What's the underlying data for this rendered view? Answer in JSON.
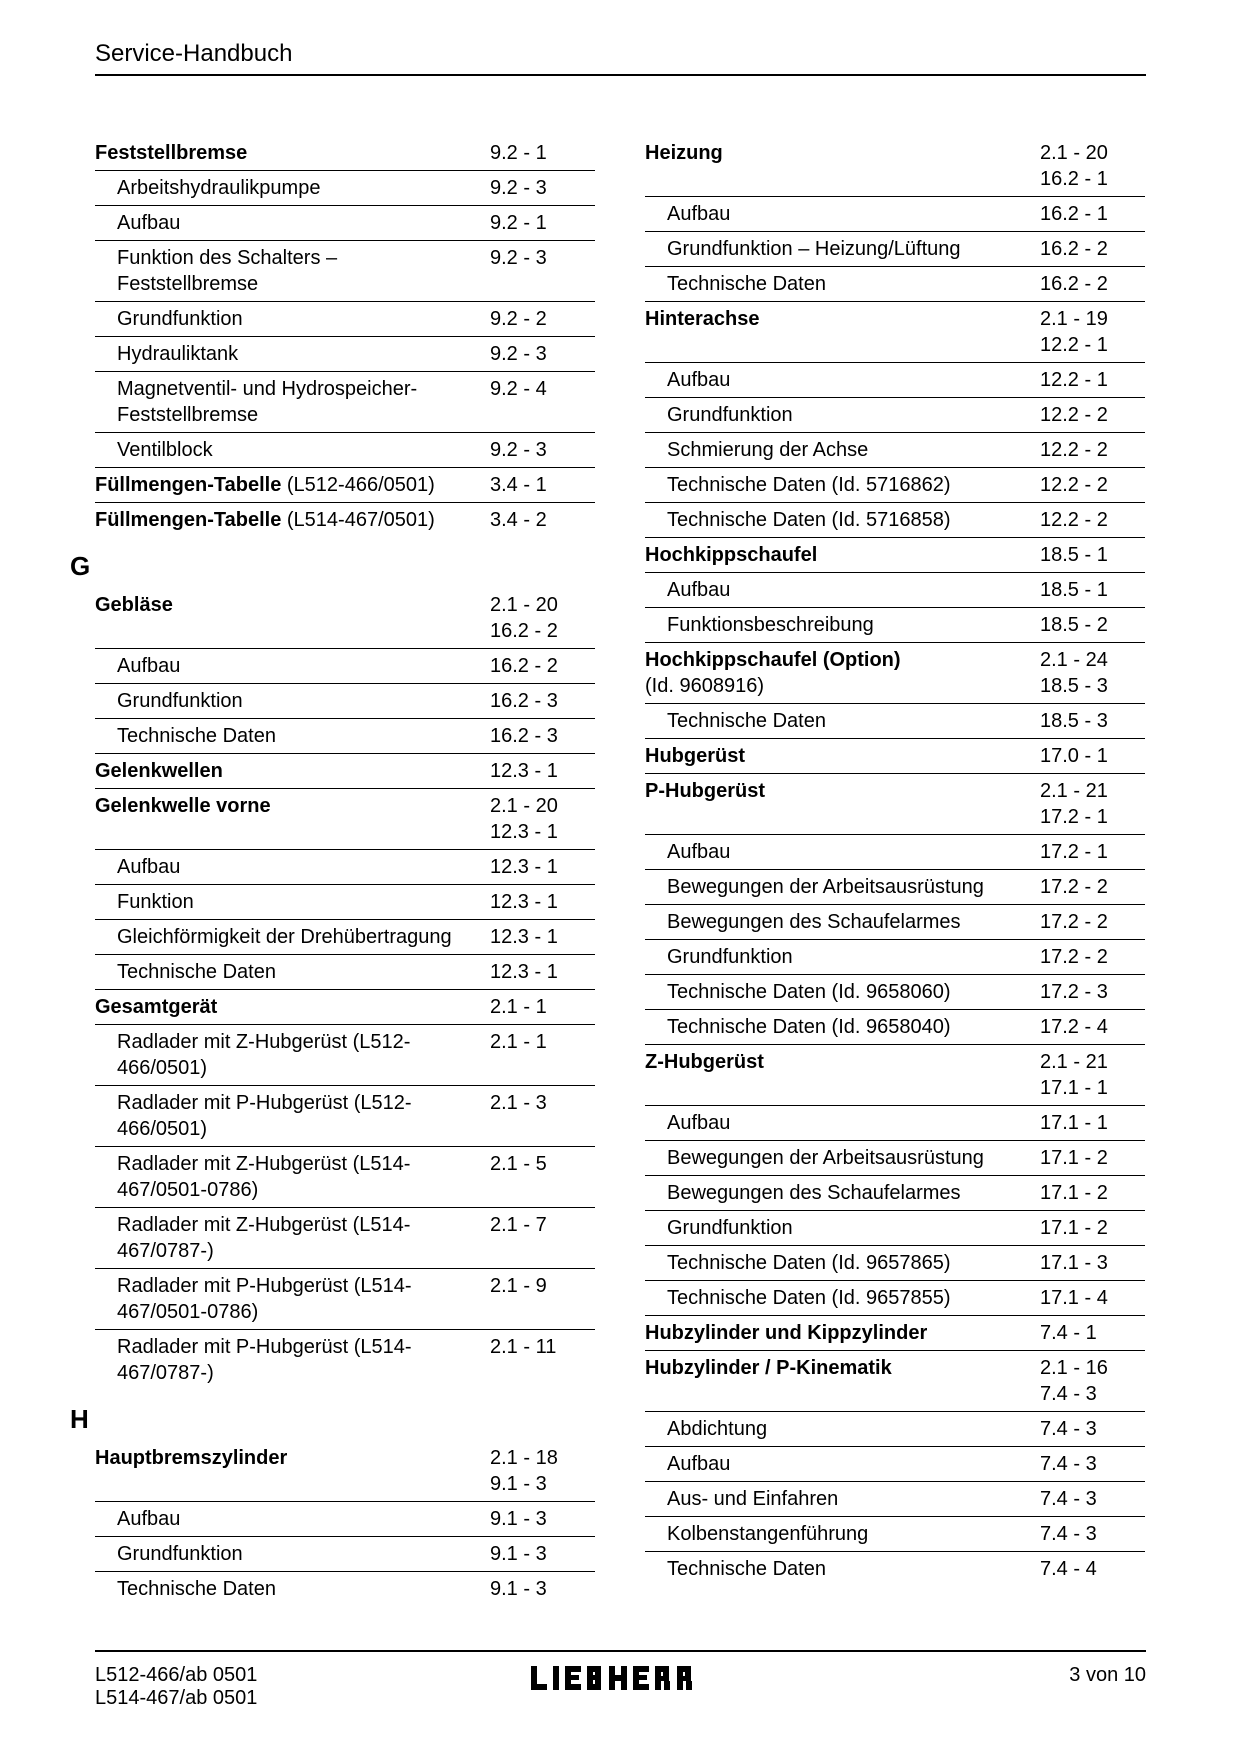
{
  "header": {
    "title": "Service-Handbuch"
  },
  "footer": {
    "left": "L512-466/ab 0501\nL514-467/ab 0501",
    "center": "LIEBHERR",
    "right": "3 von 10"
  },
  "left_column": [
    {
      "type": "entry",
      "bold": true,
      "sub": false,
      "noborder": true,
      "label": "Feststellbremse",
      "pages": "9.2 - 1"
    },
    {
      "type": "entry",
      "bold": false,
      "sub": true,
      "noborder": false,
      "label": "Arbeitshydraulikpumpe",
      "pages": "9.2 - 3"
    },
    {
      "type": "entry",
      "bold": false,
      "sub": true,
      "noborder": false,
      "label": "Aufbau",
      "pages": "9.2 - 1"
    },
    {
      "type": "entry",
      "bold": false,
      "sub": true,
      "noborder": false,
      "label": "Funktion des Schalters – Feststellbremse",
      "pages": "9.2 - 3"
    },
    {
      "type": "entry",
      "bold": false,
      "sub": true,
      "noborder": false,
      "label": "Grundfunktion",
      "pages": "9.2 - 2"
    },
    {
      "type": "entry",
      "bold": false,
      "sub": true,
      "noborder": false,
      "label": "Hydrauliktank",
      "pages": "9.2 - 3"
    },
    {
      "type": "entry",
      "bold": false,
      "sub": true,
      "noborder": false,
      "label": "Magnetventil- und Hydrospeicher-Feststellbremse",
      "pages": "9.2 - 4"
    },
    {
      "type": "entry",
      "bold": false,
      "sub": true,
      "noborder": false,
      "label": "Ventilblock",
      "pages": "9.2 - 3"
    },
    {
      "type": "entry-mixed",
      "sub": false,
      "noborder": false,
      "boldpart": "Füllmengen-Tabelle",
      "normalpart": " (L512-466/0501)",
      "pages": "3.4 - 1"
    },
    {
      "type": "entry-mixed",
      "sub": false,
      "noborder": false,
      "boldpart": "Füllmengen-Tabelle",
      "normalpart": " (L514-467/0501)",
      "pages": "3.4 - 2"
    },
    {
      "type": "letter",
      "text": "G"
    },
    {
      "type": "entry",
      "bold": true,
      "sub": false,
      "noborder": true,
      "label": "Gebläse",
      "pages": "2.1 - 20\n16.2 - 2"
    },
    {
      "type": "entry",
      "bold": false,
      "sub": true,
      "noborder": false,
      "label": "Aufbau",
      "pages": "16.2 - 2"
    },
    {
      "type": "entry",
      "bold": false,
      "sub": true,
      "noborder": false,
      "label": "Grundfunktion",
      "pages": "16.2 - 3"
    },
    {
      "type": "entry",
      "bold": false,
      "sub": true,
      "noborder": false,
      "label": "Technische Daten",
      "pages": "16.2 - 3"
    },
    {
      "type": "entry",
      "bold": true,
      "sub": false,
      "noborder": false,
      "label": "Gelenkwellen",
      "pages": "12.3 - 1"
    },
    {
      "type": "entry",
      "bold": true,
      "sub": false,
      "noborder": false,
      "label": "Gelenkwelle vorne",
      "pages": "2.1 - 20\n12.3 - 1"
    },
    {
      "type": "entry",
      "bold": false,
      "sub": true,
      "noborder": false,
      "label": "Aufbau",
      "pages": "12.3 - 1"
    },
    {
      "type": "entry",
      "bold": false,
      "sub": true,
      "noborder": false,
      "label": "Funktion",
      "pages": "12.3 - 1"
    },
    {
      "type": "entry",
      "bold": false,
      "sub": true,
      "noborder": false,
      "label": "Gleichförmigkeit der Drehübertragung",
      "pages": "12.3 - 1"
    },
    {
      "type": "entry",
      "bold": false,
      "sub": true,
      "noborder": false,
      "label": "Technische Daten",
      "pages": "12.3 - 1"
    },
    {
      "type": "entry",
      "bold": true,
      "sub": false,
      "noborder": false,
      "label": "Gesamtgerät",
      "pages": "2.1 - 1"
    },
    {
      "type": "entry",
      "bold": false,
      "sub": true,
      "noborder": false,
      "label": "Radlader mit Z-Hubgerüst (L512-466/0501)",
      "pages": "2.1 - 1"
    },
    {
      "type": "entry",
      "bold": false,
      "sub": true,
      "noborder": false,
      "label": "Radlader mit P-Hubgerüst (L512-466/0501)",
      "pages": "2.1 - 3"
    },
    {
      "type": "entry",
      "bold": false,
      "sub": true,
      "noborder": false,
      "label": "Radlader mit Z-Hubgerüst (L514-467/0501-0786)",
      "pages": "2.1 - 5"
    },
    {
      "type": "entry",
      "bold": false,
      "sub": true,
      "noborder": false,
      "label": "Radlader mit Z-Hubgerüst (L514-467/0787-)",
      "pages": "2.1 - 7"
    },
    {
      "type": "entry",
      "bold": false,
      "sub": true,
      "noborder": false,
      "label": "Radlader mit P-Hubgerüst (L514-467/0501-0786)",
      "pages": "2.1 - 9"
    },
    {
      "type": "entry",
      "bold": false,
      "sub": true,
      "noborder": false,
      "label": "Radlader mit P-Hubgerüst (L514-467/0787-)",
      "pages": "2.1 - 11"
    },
    {
      "type": "letter",
      "text": "H"
    },
    {
      "type": "entry",
      "bold": true,
      "sub": false,
      "noborder": true,
      "label": "Hauptbremszylinder",
      "pages": "2.1 - 18\n9.1 - 3"
    },
    {
      "type": "entry",
      "bold": false,
      "sub": true,
      "noborder": false,
      "label": "Aufbau",
      "pages": "9.1 - 3"
    },
    {
      "type": "entry",
      "bold": false,
      "sub": true,
      "noborder": false,
      "label": "Grundfunktion",
      "pages": "9.1 - 3"
    },
    {
      "type": "entry",
      "bold": false,
      "sub": true,
      "noborder": false,
      "label": "Technische Daten",
      "pages": "9.1 - 3"
    }
  ],
  "right_column": [
    {
      "type": "entry",
      "bold": true,
      "sub": false,
      "noborder": true,
      "label": "Heizung",
      "pages": "2.1 - 20\n16.2 - 1"
    },
    {
      "type": "entry",
      "bold": false,
      "sub": true,
      "noborder": false,
      "label": "Aufbau",
      "pages": "16.2 - 1"
    },
    {
      "type": "entry",
      "bold": false,
      "sub": true,
      "noborder": false,
      "label": "Grundfunktion – Heizung/Lüftung",
      "pages": "16.2 - 2"
    },
    {
      "type": "entry",
      "bold": false,
      "sub": true,
      "noborder": false,
      "label": "Technische Daten",
      "pages": "16.2 - 2"
    },
    {
      "type": "entry",
      "bold": true,
      "sub": false,
      "noborder": false,
      "label": "Hinterachse",
      "pages": "2.1 - 19\n12.2 - 1"
    },
    {
      "type": "entry",
      "bold": false,
      "sub": true,
      "noborder": false,
      "label": "Aufbau",
      "pages": "12.2 - 1"
    },
    {
      "type": "entry",
      "bold": false,
      "sub": true,
      "noborder": false,
      "label": "Grundfunktion",
      "pages": "12.2 - 2"
    },
    {
      "type": "entry",
      "bold": false,
      "sub": true,
      "noborder": false,
      "label": "Schmierung der Achse",
      "pages": "12.2 - 2"
    },
    {
      "type": "entry",
      "bold": false,
      "sub": true,
      "noborder": false,
      "label": "Technische Daten (Id. 5716862)",
      "pages": "12.2 - 2"
    },
    {
      "type": "entry",
      "bold": false,
      "sub": true,
      "noborder": false,
      "label": "Technische Daten (Id. 5716858)",
      "pages": "12.2 - 2"
    },
    {
      "type": "entry",
      "bold": true,
      "sub": false,
      "noborder": false,
      "label": "Hochkippschaufel",
      "pages": "18.5 - 1"
    },
    {
      "type": "entry",
      "bold": false,
      "sub": true,
      "noborder": false,
      "label": "Aufbau",
      "pages": "18.5 - 1"
    },
    {
      "type": "entry",
      "bold": false,
      "sub": true,
      "noborder": false,
      "label": "Funktionsbeschreibung",
      "pages": "18.5 - 2"
    },
    {
      "type": "entry-mixed",
      "sub": false,
      "noborder": false,
      "boldpart": "Hochkippschaufel (Option)",
      "normalpart": "\n(Id. 9608916)",
      "pages": "2.1 - 24\n18.5 - 3"
    },
    {
      "type": "entry",
      "bold": false,
      "sub": true,
      "noborder": false,
      "label": "Technische Daten",
      "pages": "18.5 - 3"
    },
    {
      "type": "entry",
      "bold": true,
      "sub": false,
      "noborder": false,
      "label": "Hubgerüst",
      "pages": "17.0 - 1"
    },
    {
      "type": "entry",
      "bold": true,
      "sub": false,
      "noborder": false,
      "label": "P-Hubgerüst",
      "pages": "2.1 - 21\n17.2 - 1"
    },
    {
      "type": "entry",
      "bold": false,
      "sub": true,
      "noborder": false,
      "label": "Aufbau",
      "pages": "17.2 - 1"
    },
    {
      "type": "entry",
      "bold": false,
      "sub": true,
      "noborder": false,
      "label": "Bewegungen der Arbeitsausrüstung",
      "pages": "17.2 - 2"
    },
    {
      "type": "entry",
      "bold": false,
      "sub": true,
      "noborder": false,
      "label": "Bewegungen des Schaufelarmes",
      "pages": "17.2 - 2"
    },
    {
      "type": "entry",
      "bold": false,
      "sub": true,
      "noborder": false,
      "label": "Grundfunktion",
      "pages": "17.2 - 2"
    },
    {
      "type": "entry",
      "bold": false,
      "sub": true,
      "noborder": false,
      "label": "Technische Daten (Id. 9658060)",
      "pages": "17.2 - 3"
    },
    {
      "type": "entry",
      "bold": false,
      "sub": true,
      "noborder": false,
      "label": "Technische Daten (Id. 9658040)",
      "pages": "17.2 - 4"
    },
    {
      "type": "entry",
      "bold": true,
      "sub": false,
      "noborder": false,
      "label": "Z-Hubgerüst",
      "pages": "2.1 - 21\n17.1 - 1"
    },
    {
      "type": "entry",
      "bold": false,
      "sub": true,
      "noborder": false,
      "label": "Aufbau",
      "pages": "17.1 - 1"
    },
    {
      "type": "entry",
      "bold": false,
      "sub": true,
      "noborder": false,
      "label": "Bewegungen der Arbeitsausrüstung",
      "pages": "17.1 - 2"
    },
    {
      "type": "entry",
      "bold": false,
      "sub": true,
      "noborder": false,
      "label": "Bewegungen des Schaufelarmes",
      "pages": "17.1 - 2"
    },
    {
      "type": "entry",
      "bold": false,
      "sub": true,
      "noborder": false,
      "label": "Grundfunktion",
      "pages": "17.1 - 2"
    },
    {
      "type": "entry",
      "bold": false,
      "sub": true,
      "noborder": false,
      "label": "Technische Daten (Id. 9657865)",
      "pages": "17.1 - 3"
    },
    {
      "type": "entry",
      "bold": false,
      "sub": true,
      "noborder": false,
      "label": "Technische Daten (Id. 9657855)",
      "pages": "17.1 - 4"
    },
    {
      "type": "entry",
      "bold": true,
      "sub": false,
      "noborder": false,
      "label": "Hubzylinder und Kippzylinder",
      "pages": "7.4 - 1"
    },
    {
      "type": "entry",
      "bold": true,
      "sub": false,
      "noborder": false,
      "label": "Hubzylinder / P-Kinematik",
      "pages": "2.1 - 16\n7.4 - 3"
    },
    {
      "type": "entry",
      "bold": false,
      "sub": true,
      "noborder": false,
      "label": "Abdichtung",
      "pages": "7.4 - 3"
    },
    {
      "type": "entry",
      "bold": false,
      "sub": true,
      "noborder": false,
      "label": "Aufbau",
      "pages": "7.4 - 3"
    },
    {
      "type": "entry",
      "bold": false,
      "sub": true,
      "noborder": false,
      "label": "Aus- und Einfahren",
      "pages": "7.4 - 3"
    },
    {
      "type": "entry",
      "bold": false,
      "sub": true,
      "noborder": false,
      "label": "Kolbenstangenführung",
      "pages": "7.4 - 3"
    },
    {
      "type": "entry",
      "bold": false,
      "sub": true,
      "noborder": false,
      "label": "Technische Daten",
      "pages": "7.4 - 4"
    }
  ]
}
